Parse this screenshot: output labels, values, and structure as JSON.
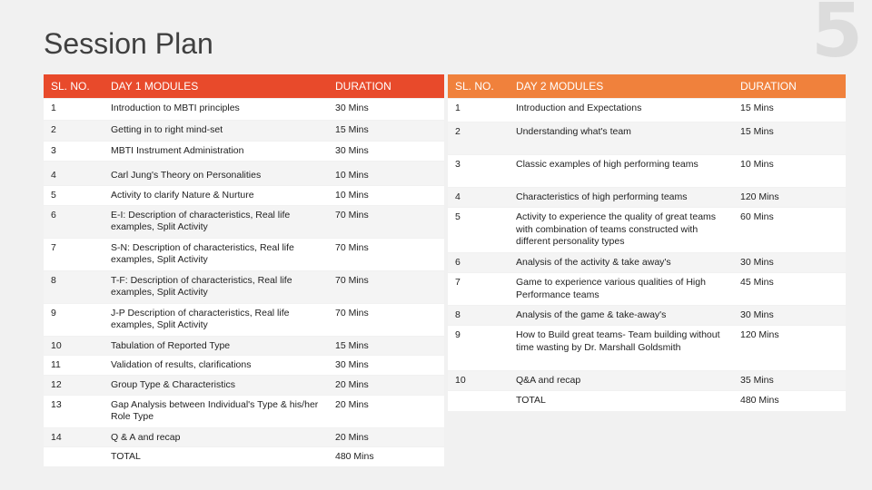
{
  "slide": {
    "title": "Session Plan",
    "number": "5"
  },
  "day1": {
    "headers": [
      "SL. NO.",
      "DAY 1 MODULES",
      "DURATION"
    ],
    "rows": [
      [
        "1",
        "Introduction to MBTI principles",
        "30 Mins"
      ],
      [
        "2",
        "Getting in to right mind-set",
        "15 Mins"
      ],
      [
        "3",
        "MBTI Instrument Administration",
        "30 Mins"
      ],
      [
        "4",
        "Carl Jung's Theory on Personalities",
        "10 Mins"
      ],
      [
        "5",
        "Activity to clarify Nature & Nurture",
        "10 Mins"
      ],
      [
        "6",
        "E-I: Description of characteristics, Real life examples, Split Activity",
        "70 Mins"
      ],
      [
        "7",
        "S-N: Description of characteristics, Real life examples, Split Activity",
        "70 Mins"
      ],
      [
        "8",
        "T-F: Description of characteristics, Real life examples, Split Activity",
        "70 Mins"
      ],
      [
        "9",
        "J-P Description of characteristics, Real life examples, Split Activity",
        "70 Mins"
      ],
      [
        "10",
        "Tabulation of Reported Type",
        "15 Mins"
      ],
      [
        "11",
        "Validation of results, clarifications",
        "30 Mins"
      ],
      [
        "12",
        "Group Type & Characteristics",
        "20 Mins"
      ],
      [
        "13",
        "Gap Analysis between Individual's Type & his/her Role Type",
        "20 Mins"
      ],
      [
        "14",
        "Q & A and recap",
        "20 Mins"
      ],
      [
        "",
        "TOTAL",
        "480 Mins"
      ]
    ]
  },
  "day2": {
    "headers": [
      "SL. NO.",
      "DAY 2 MODULES",
      "DURATION"
    ],
    "rows": [
      [
        "1",
        "Introduction and Expectations",
        "15 Mins"
      ],
      [
        "2",
        "Understanding what's team",
        "15 Mins"
      ],
      [
        "3",
        "Classic examples of high performing teams",
        "10 Mins"
      ],
      [
        "4",
        "Characteristics of high performing teams",
        "120 Mins"
      ],
      [
        "5",
        "Activity to experience the quality of great teams with combination of teams constructed with different personality types",
        "60 Mins"
      ],
      [
        "6",
        "Analysis of the activity & take away's",
        "30 Mins"
      ],
      [
        "7",
        "Game to experience various qualities of High Performance teams",
        "45 Mins"
      ],
      [
        "8",
        "Analysis of the game & take-away's",
        "30 Mins"
      ],
      [
        "9",
        "How to Build great teams- Team building without time wasting by Dr. Marshall Goldsmith",
        "120 Mins"
      ],
      [
        "10",
        "Q&A and recap",
        "35 Mins"
      ],
      [
        "",
        "TOTAL",
        "480 Mins"
      ]
    ]
  },
  "colors": {
    "day1_header": "#e84a2b",
    "day2_header": "#f0813c",
    "background": "#f1f1f1"
  }
}
